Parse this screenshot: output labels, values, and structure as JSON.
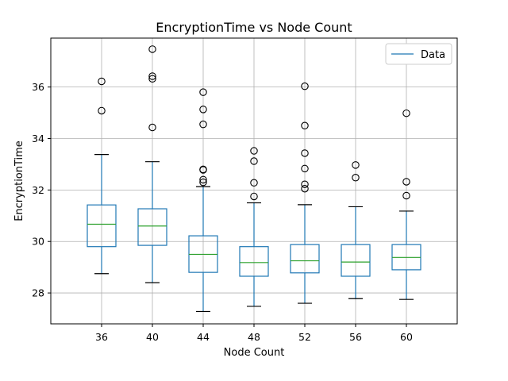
{
  "chart_data": {
    "type": "box",
    "title": "EncryptionTime vs Node Count",
    "xlabel": "Node Count",
    "ylabel": "EncryptionTime",
    "ylim": [
      26.8,
      37.9
    ],
    "yticks": [
      28,
      30,
      32,
      34,
      36
    ],
    "grid": true,
    "legend": {
      "entries": [
        "Data"
      ],
      "placement": "top-right"
    },
    "colors": {
      "box": "#1f77b4",
      "median": "#2ca02c",
      "whisker_cap": "#000000",
      "flier": "#000000",
      "grid": "#b0b0b0"
    },
    "categories": [
      "36",
      "40",
      "44",
      "48",
      "52",
      "56",
      "60"
    ],
    "boxes": [
      {
        "category": "36",
        "whislo": 28.75,
        "q1": 29.8,
        "med": 30.67,
        "q3": 31.42,
        "whishi": 33.38,
        "fliers": [
          35.08,
          36.22
        ]
      },
      {
        "category": "40",
        "whislo": 28.4,
        "q1": 29.85,
        "med": 30.6,
        "q3": 31.27,
        "whishi": 33.1,
        "fliers": [
          34.43,
          36.32,
          36.42,
          37.47
        ]
      },
      {
        "category": "44",
        "whislo": 27.28,
        "q1": 28.8,
        "med": 29.5,
        "q3": 30.22,
        "whishi": 32.13,
        "fliers": [
          32.3,
          32.4,
          32.78,
          32.8,
          34.55,
          35.13,
          35.8
        ]
      },
      {
        "category": "48",
        "whislo": 27.48,
        "q1": 28.65,
        "med": 29.18,
        "q3": 29.8,
        "whishi": 31.5,
        "fliers": [
          31.75,
          32.28,
          33.12,
          33.52
        ]
      },
      {
        "category": "52",
        "whislo": 27.6,
        "q1": 28.78,
        "med": 29.25,
        "q3": 29.88,
        "whishi": 31.43,
        "fliers": [
          32.05,
          32.22,
          32.83,
          33.43,
          34.5,
          36.03
        ]
      },
      {
        "category": "56",
        "whislo": 27.78,
        "q1": 28.65,
        "med": 29.2,
        "q3": 29.88,
        "whishi": 31.35,
        "fliers": [
          32.48,
          32.97
        ]
      },
      {
        "category": "60",
        "whislo": 27.75,
        "q1": 28.9,
        "med": 29.38,
        "q3": 29.88,
        "whishi": 31.18,
        "fliers": [
          31.78,
          32.32,
          34.98
        ]
      }
    ]
  }
}
